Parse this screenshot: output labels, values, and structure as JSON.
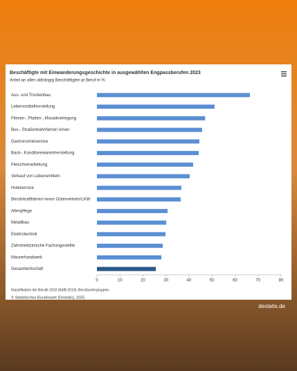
{
  "chart_data": {
    "type": "bar",
    "orientation": "horizontal",
    "title": "Beschäftigte mit Einwanderungsgeschichte in ausgewählten Engpassberufen 2023",
    "subtitle": "Anteil an allen abhängig Beschäftigten je Beruf in %",
    "categories": [
      "Aus- und Trockenbau",
      "Lebensmittelherstellung",
      "Fliesen-, Platten-, Mosaikverlegung",
      "Bus-, Straßenbahnfahrer/-innen",
      "Gastronomieservice",
      "Back-, Konditoreiwarenherstellung",
      "Fleischverarbeitung",
      "Verkauf von Lebensmitteln",
      "Hotelservice",
      "Berufskraftfahrer/-innen Güterverkehr/LKW",
      "Altenpflege",
      "Metallbau",
      "Elektrotechnik",
      "Zahnmedizinische Fachangestellte",
      "Maurerhandwerk",
      "Gesamtwirtschaft"
    ],
    "values": [
      66.5,
      51.1,
      47,
      45.7,
      44.5,
      44.2,
      41.8,
      40.3,
      36.7,
      36.4,
      30.7,
      30.1,
      29.8,
      28.6,
      28,
      25.6
    ],
    "colors": [
      "#5b8fd3",
      "#5b8fd3",
      "#5b8fd3",
      "#5b8fd3",
      "#5b8fd3",
      "#5b8fd3",
      "#5b8fd3",
      "#5b8fd3",
      "#5b8fd3",
      "#5b8fd3",
      "#5b8fd3",
      "#5b8fd3",
      "#5b8fd3",
      "#5b8fd3",
      "#5b8fd3",
      "#2a5988"
    ],
    "xlim": [
      0,
      80
    ],
    "xticks": [
      0,
      10,
      20,
      30,
      40,
      50,
      60,
      70,
      80
    ],
    "footnote": "Klassifikation der Berufe 2010 (KldB 2010); Berufsuntergruppen.",
    "source": "© Statistisches Bundesamt (Destatis), 2025",
    "watermark": "destatis.de"
  }
}
